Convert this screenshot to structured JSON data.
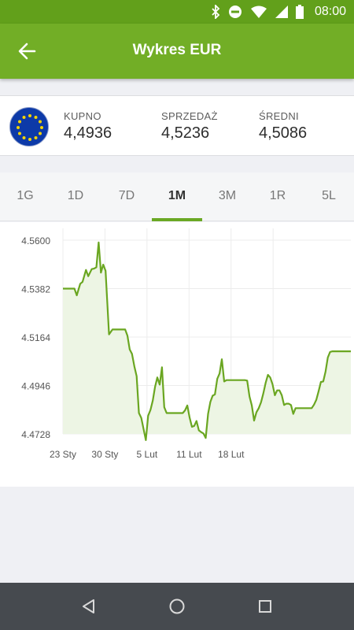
{
  "status_bar": {
    "time": "08:00",
    "icons": [
      "bluetooth-icon",
      "do-not-disturb-icon",
      "wifi-icon",
      "signal-icon",
      "battery-icon"
    ]
  },
  "header": {
    "title": "Wykres EUR",
    "back_icon": "arrow-left-icon"
  },
  "currency": {
    "flag": "eu-flag-icon",
    "rates": [
      {
        "label": "KUPNO",
        "value": "4,4936"
      },
      {
        "label": "SPRZEDAŻ",
        "value": "4,5236"
      },
      {
        "label": "ŚREDNI",
        "value": "4,5086"
      }
    ]
  },
  "tabs": {
    "items": [
      "1G",
      "1D",
      "7D",
      "1M",
      "3M",
      "1R",
      "5L"
    ],
    "active": "1M"
  },
  "colors": {
    "accent": "#72ae26",
    "status_bar": "#62a01b",
    "line": "#6aa621",
    "fill": "#edf5e4"
  },
  "chart_data": {
    "type": "area",
    "y_ticks": [
      "4.5600",
      "4.5382",
      "4.5164",
      "4.4946",
      "4.4728"
    ],
    "x_ticks": [
      "23 Sty",
      "30 Sty",
      "5 Lut",
      "11 Lut",
      "18 Lut"
    ],
    "ylim": [
      4.4728,
      4.56
    ],
    "x": [
      0,
      1.2,
      1.6,
      2.0,
      2.4,
      3.0,
      3.4,
      4.0,
      4.4,
      5.0,
      5.4,
      5.8,
      6.2,
      6.6,
      7.0,
      7.4,
      8.0,
      8.6,
      9.0,
      9.6,
      10.0,
      10.4,
      10.8,
      11.2,
      11.6,
      12.0,
      12.4,
      12.8,
      13.2,
      13.6,
      14.0,
      14.4,
      14.8,
      15.2,
      15.6,
      16.0,
      16.4,
      16.8,
      17.2,
      17.6,
      18.0,
      18.4,
      18.8,
      19.2,
      19.6,
      20.0,
      20.4,
      20.8,
      21.2,
      21.6,
      22.0,
      22.4,
      22.8,
      23.2,
      23.6,
      24.0,
      24.4,
      24.8,
      25.2,
      25.6,
      26.0,
      26.4,
      26.8,
      27.2,
      27.6,
      28.0,
      28.4,
      28.8,
      29.2,
      29.6,
      30.0,
      30.4,
      30.8,
      31.2,
      31.6,
      32.0,
      32.4,
      32.8,
      33.2,
      33.6,
      34.0,
      34.4,
      34.8,
      35.2,
      35.6,
      36.0,
      36.4,
      36.8,
      37.2,
      37.6,
      38.0,
      38.4,
      38.8,
      39.2,
      39.6,
      40.0,
      40.4,
      40.8,
      41.2,
      41.6,
      42.0,
      42.4,
      42.8,
      43.2,
      43.6,
      44.0,
      44.4,
      44.8,
      45.2,
      45.6,
      46.0,
      46.4,
      46.8,
      47.2,
      47.6,
      48.0,
      48.4,
      48.8,
      49.2,
      49.6,
      50.0
    ],
    "values": [
      4.5382,
      4.5382,
      4.5382,
      4.5382,
      4.5352,
      4.5404,
      4.5412,
      4.5466,
      4.5438,
      4.547,
      4.5472,
      4.5478,
      4.559,
      4.5454,
      4.549,
      4.5462,
      4.5176,
      4.5198,
      4.5198,
      4.5198,
      4.5198,
      4.5198,
      4.5198,
      4.517,
      4.5108,
      4.5088,
      4.5032,
      4.4988,
      4.4822,
      4.48,
      4.475,
      4.47,
      4.481,
      4.4836,
      4.4878,
      4.494,
      4.4982,
      4.495,
      4.5028,
      4.4848,
      4.4822,
      4.4822,
      4.4822,
      4.4822,
      4.4822,
      4.4822,
      4.4822,
      4.4822,
      4.4834,
      4.4856,
      4.4802,
      4.476,
      4.4764,
      4.4786,
      4.4744,
      4.4736,
      4.473,
      4.471,
      4.4818,
      4.4872,
      4.49,
      4.4906,
      4.4976,
      4.5,
      4.5064,
      4.4964,
      4.497,
      4.497,
      4.497,
      4.497,
      4.497,
      4.497,
      4.497,
      4.497,
      4.497,
      4.4968,
      4.4896,
      4.4856,
      4.4788,
      4.4826,
      4.4844,
      4.487,
      4.491,
      4.4958,
      4.4994,
      4.4982,
      4.4952,
      4.4902,
      4.4924,
      4.4924,
      4.4902,
      4.4858,
      4.4864,
      4.4864,
      4.4858,
      4.4818,
      4.4844,
      4.4844,
      4.4844,
      4.4844,
      4.4844,
      4.4844,
      4.4844,
      4.4844,
      4.486,
      4.4882,
      4.492,
      4.4962,
      4.4964,
      4.5008,
      4.5072,
      4.5097,
      4.51,
      4.51,
      4.51,
      4.51,
      4.51,
      4.51,
      4.51,
      4.51,
      4.51
    ],
    "grid": true
  },
  "nav_bar": {
    "buttons": [
      "back-triangle-icon",
      "home-circle-icon",
      "recents-square-icon"
    ]
  }
}
